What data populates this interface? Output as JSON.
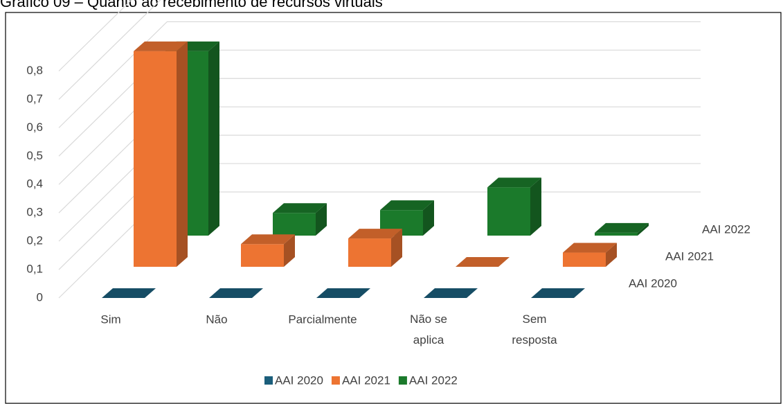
{
  "chart_data": {
    "type": "bar3d",
    "title": "Gráfico 09 – Quanto ao recebimento de recursos virtuais",
    "categories": [
      "Sim",
      "Não",
      "Parcialmente",
      "Não se aplica",
      "Sem resposta"
    ],
    "series": [
      {
        "name": "AAI 2020",
        "color": "#1b5e7b",
        "values": [
          0,
          0,
          0,
          0,
          0
        ]
      },
      {
        "name": "AAI 2021",
        "color": "#ed7432",
        "values": [
          0.76,
          0.08,
          0.1,
          0,
          0.05
        ]
      },
      {
        "name": "AAI 2022",
        "color": "#1b7a2b",
        "values": [
          0.65,
          0.08,
          0.09,
          0.17,
          0.01
        ]
      }
    ],
    "ylim": [
      0,
      0.8
    ],
    "yticks": [
      0,
      {
        "value": 0.1,
        "label": "0,1"
      },
      {
        "value": 0.2,
        "label": "0,2"
      },
      {
        "value": 0.3,
        "label": "0,3"
      },
      {
        "value": 0.4,
        "label": "0,4"
      },
      {
        "value": 0.5,
        "label": "0,5"
      },
      {
        "value": 0.6,
        "label": "0,6"
      },
      {
        "value": 0.7,
        "label": "0,7"
      },
      {
        "value": 0.8,
        "label": "0,8"
      }
    ],
    "grid": true,
    "legend": "bottom"
  }
}
